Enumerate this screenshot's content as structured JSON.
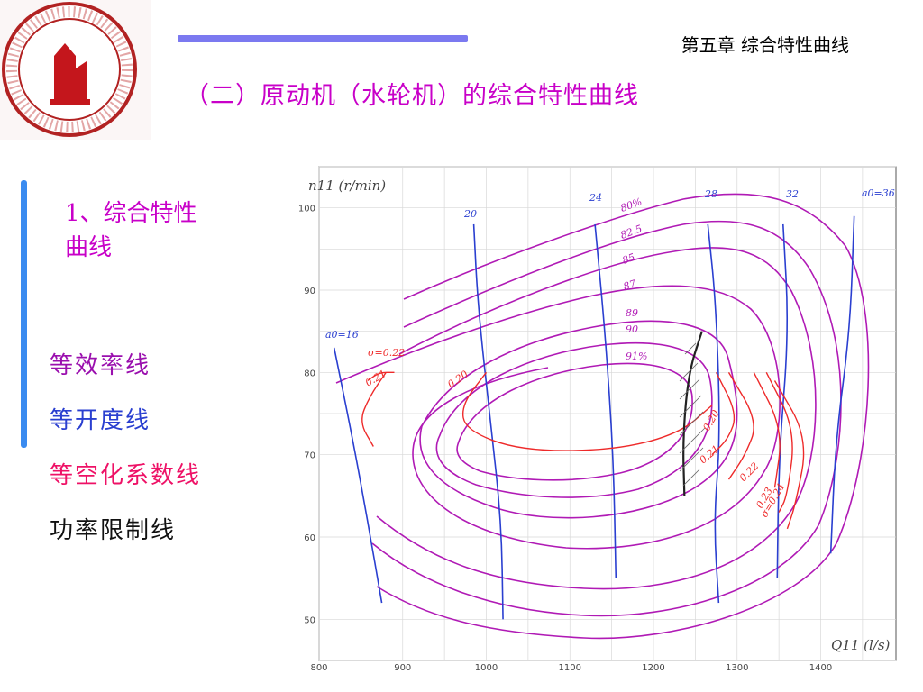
{
  "header": {
    "chapter": "第五章 综合特性曲线",
    "title": "（二）原动机（水轮机）的综合特性曲线"
  },
  "section": {
    "heading": "1、综合特性曲线"
  },
  "legend": [
    {
      "label": "等效率线",
      "color": "#a000b4"
    },
    {
      "label": "等开度线",
      "color": "#2233cc"
    },
    {
      "label": "等空化系数线",
      "color": "#ee1166"
    },
    {
      "label": "功率限制线",
      "color": "#111111"
    }
  ],
  "colors": {
    "efficiency": "#b01ab5",
    "opening": "#2a3fd0",
    "cavitation": "#ee2a2a",
    "power_limit": "#222222",
    "accent_bar": "#7b79f0",
    "side_bar": "#3a8bf0"
  },
  "chart_data": {
    "type": "line",
    "xlabel": "Q11 (l/s)",
    "ylabel": "n11 (r/min)",
    "xlim": [
      800,
      1490
    ],
    "ylim": [
      45,
      105
    ],
    "x_ticks": [
      "800",
      "900",
      "1000",
      "1100",
      "1200",
      "1300",
      "1400"
    ],
    "y_ticks": [
      "50",
      "60",
      "70",
      "80",
      "90",
      "100"
    ],
    "grid": true,
    "efficiency_labels": [
      "80%",
      "82.5",
      "85",
      "87",
      "89",
      "90",
      "91%"
    ],
    "opening_labels": [
      "a0=16",
      "20",
      "24",
      "28",
      "32",
      "a0=36"
    ],
    "cavitation_labels": [
      "σ=0.22",
      "0.21",
      "0.20",
      "0.20",
      "0.21",
      "0.22",
      "0.23",
      "σ=0.24"
    ],
    "opening_lines": [
      {
        "label": "a0=16",
        "points": [
          [
            818,
            83
          ],
          [
            840,
            72
          ],
          [
            858,
            62
          ],
          [
            875,
            52
          ]
        ]
      },
      {
        "label": "20",
        "points": [
          [
            985,
            98
          ],
          [
            990,
            88
          ],
          [
            1005,
            74
          ],
          [
            1018,
            62
          ],
          [
            1020,
            50
          ]
        ]
      },
      {
        "label": "24",
        "points": [
          [
            1130,
            98
          ],
          [
            1142,
            85
          ],
          [
            1152,
            70
          ],
          [
            1155,
            55
          ]
        ]
      },
      {
        "label": "28",
        "points": [
          [
            1265,
            98
          ],
          [
            1275,
            88
          ],
          [
            1280,
            72
          ],
          [
            1272,
            62
          ],
          [
            1278,
            52
          ]
        ]
      },
      {
        "label": "32",
        "points": [
          [
            1355,
            98
          ],
          [
            1362,
            85
          ],
          [
            1350,
            70
          ],
          [
            1348,
            55
          ]
        ]
      },
      {
        "label": "a0=36",
        "points": [
          [
            1440,
            99
          ],
          [
            1435,
            85
          ],
          [
            1418,
            72
          ],
          [
            1412,
            58
          ]
        ]
      }
    ],
    "cavitation_lines": [
      {
        "label": "σ=0.22",
        "points": [
          [
            880,
            80
          ],
          [
            860,
            77
          ],
          [
            848,
            74
          ],
          [
            865,
            71
          ]
        ]
      },
      {
        "label": "0.21",
        "points": [
          [
            858,
            79
          ],
          [
            872,
            80
          ],
          [
            890,
            80
          ]
        ]
      },
      {
        "label": "0.20",
        "points": [
          [
            1000,
            80
          ],
          [
            970,
            76
          ],
          [
            975,
            73
          ],
          [
            1040,
            70.5
          ],
          [
            1150,
            70.5
          ],
          [
            1230,
            72.5
          ],
          [
            1270,
            76
          ]
        ]
      },
      {
        "label": "0.20",
        "points": [
          [
            1275,
            80
          ],
          [
            1300,
            75
          ],
          [
            1290,
            72
          ],
          [
            1270,
            70
          ]
        ]
      },
      {
        "label": "0.21",
        "points": [
          [
            1290,
            80
          ],
          [
            1325,
            74
          ],
          [
            1310,
            70
          ],
          [
            1290,
            67
          ]
        ]
      },
      {
        "label": "0.22",
        "points": [
          [
            1320,
            80
          ],
          [
            1355,
            73
          ],
          [
            1345,
            66
          ]
        ]
      },
      {
        "label": "0.23",
        "points": [
          [
            1335,
            80
          ],
          [
            1370,
            73
          ],
          [
            1360,
            65
          ],
          [
            1350,
            63
          ]
        ]
      },
      {
        "label": "σ=0.24",
        "points": [
          [
            1345,
            79
          ],
          [
            1385,
            72
          ],
          [
            1370,
            64
          ],
          [
            1360,
            61
          ]
        ]
      }
    ],
    "power_limit_line": [
      [
        1258,
        85
      ],
      [
        1242,
        80
      ],
      [
        1235,
        72
      ],
      [
        1237,
        65
      ]
    ]
  }
}
